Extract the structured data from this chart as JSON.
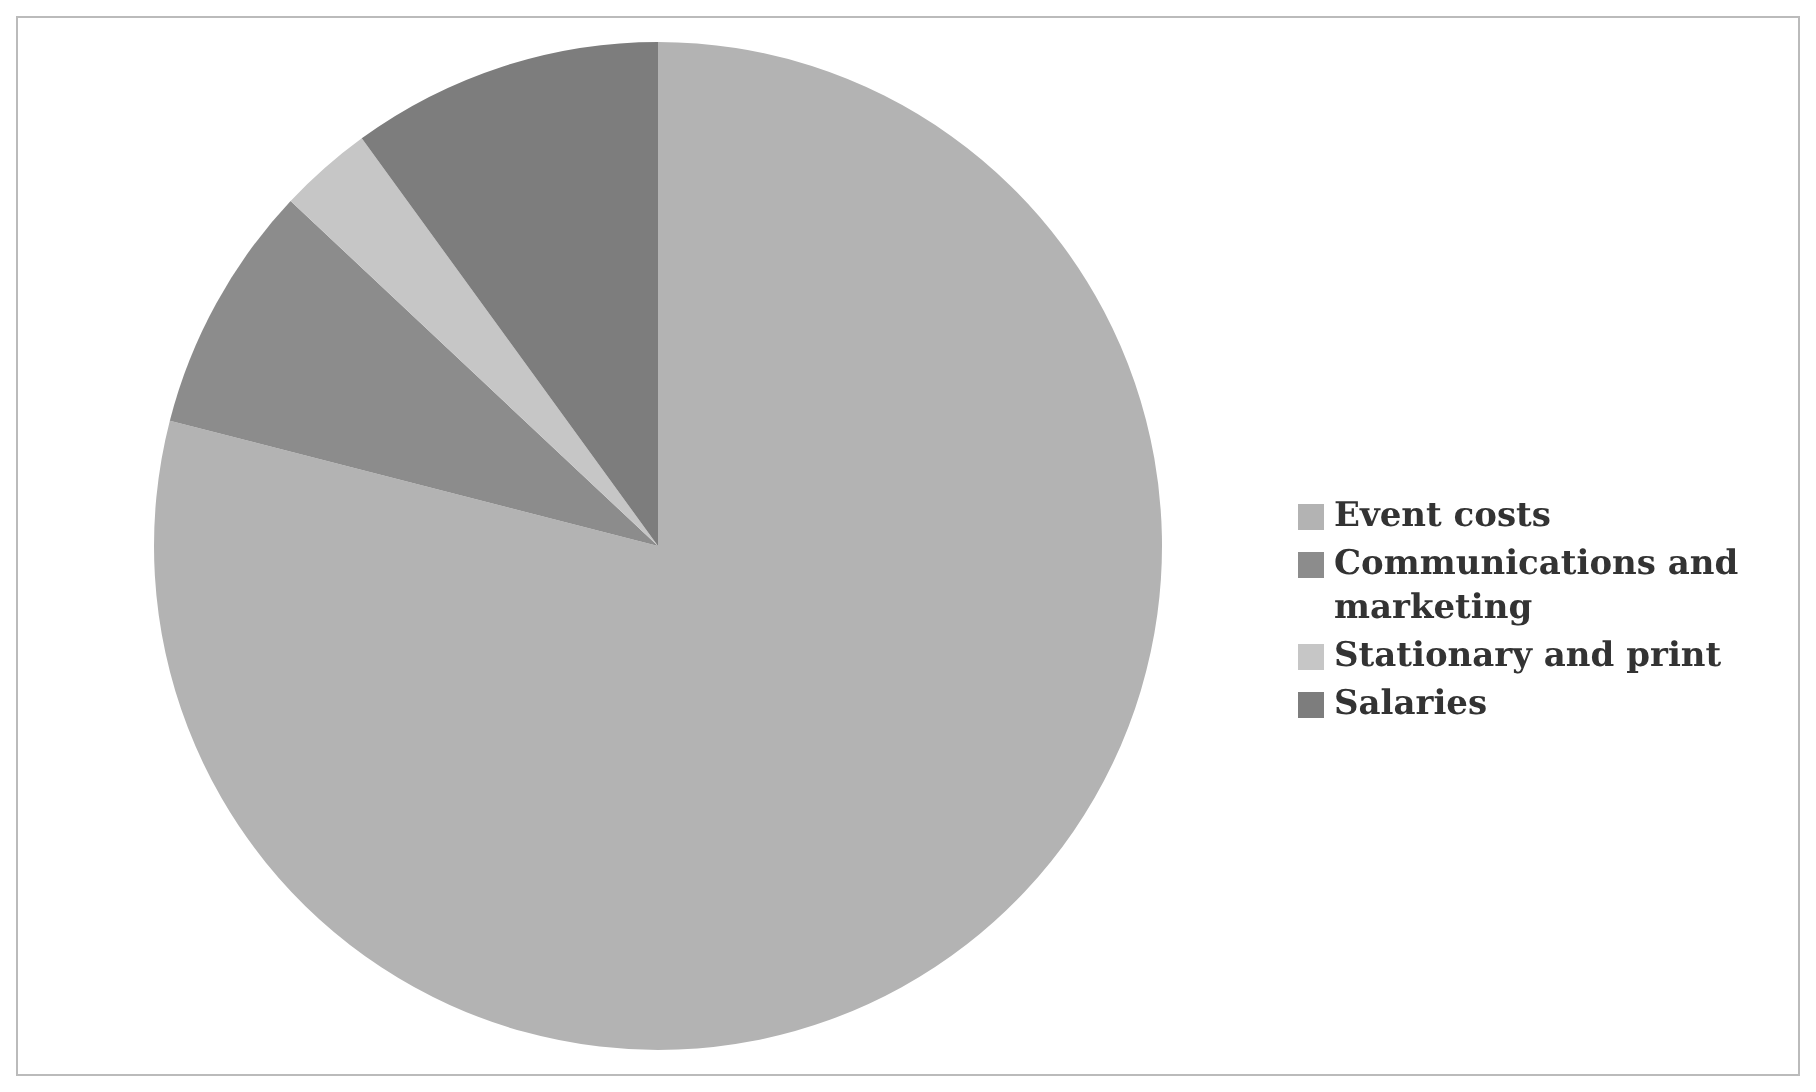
{
  "chart_data": {
    "type": "pie",
    "categories": [
      "Event costs",
      "Communications and marketing",
      "Stationary and print",
      "Salaries"
    ],
    "values": [
      79,
      8,
      3,
      10
    ],
    "colors": [
      "#b3b3b3",
      "#8c8c8c",
      "#c6c6c6",
      "#7d7d7d"
    ],
    "legend": "right"
  }
}
